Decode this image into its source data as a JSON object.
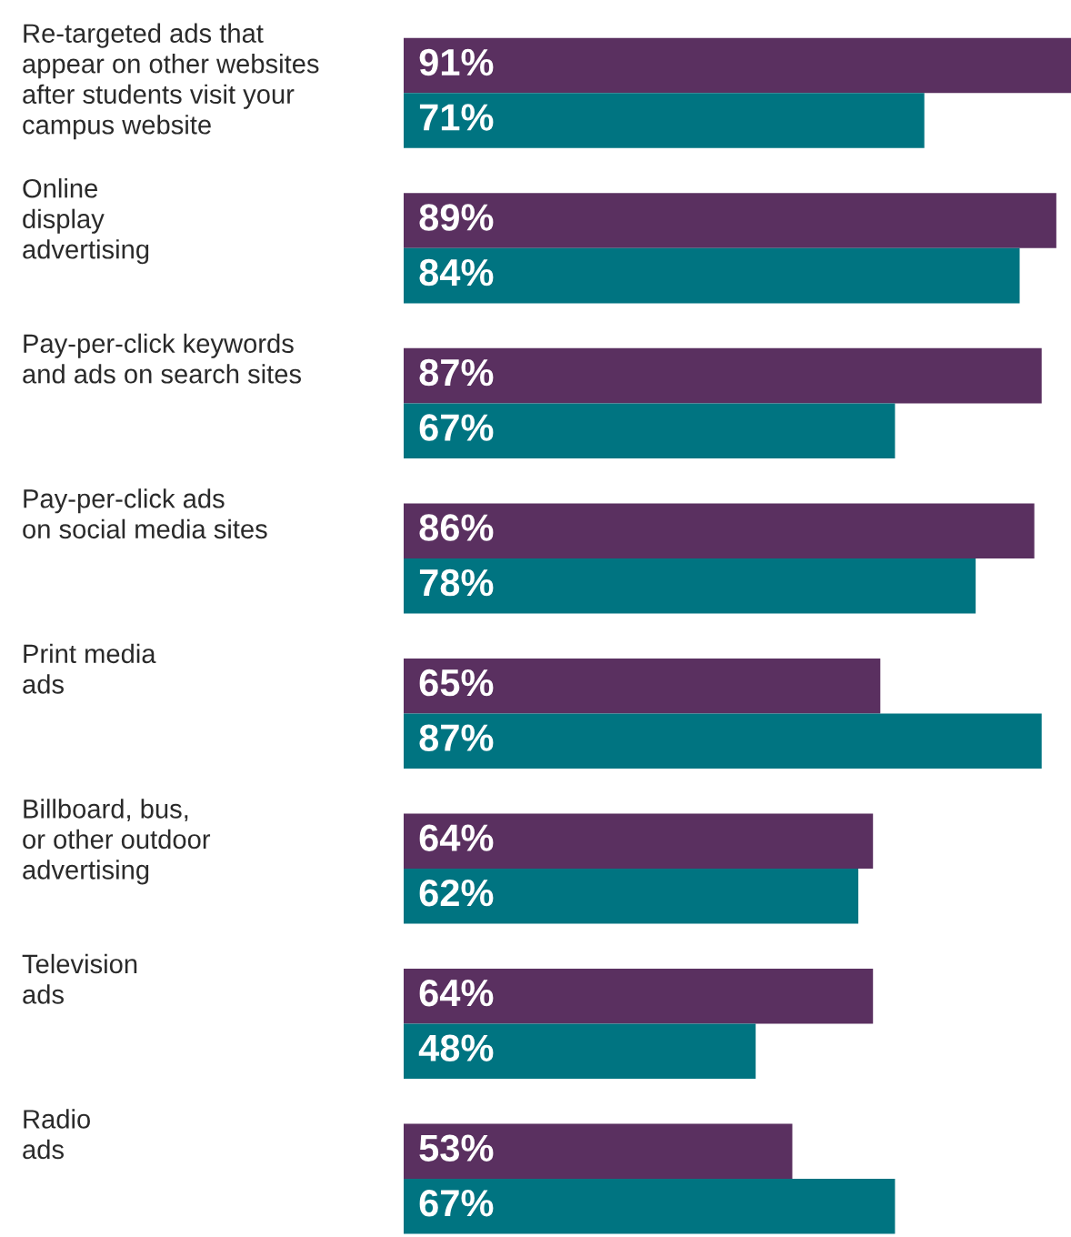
{
  "chart_data": {
    "type": "bar",
    "orientation": "horizontal",
    "legend": false,
    "categories": [
      "Re-targeted ads that\nappear on other websites\nafter students visit your\ncampus website",
      "Online\ndisplay\nadvertising",
      "Pay-per-click keywords\nand ads on search sites",
      "Pay-per-click ads\non social media sites",
      "Print media\nads",
      "Billboard, bus,\nor other outdoor\nadvertising",
      "Television\nads",
      "Radio\nads"
    ],
    "series": [
      {
        "color": "#5a3060",
        "values": [
          91,
          89,
          87,
          86,
          65,
          64,
          64,
          53
        ],
        "value_labels": [
          "91%",
          "89%",
          "87%",
          "86%",
          "65%",
          "64%",
          "64%",
          "53%"
        ]
      },
      {
        "color": "#007481",
        "values": [
          71,
          84,
          67,
          78,
          87,
          62,
          48,
          67
        ],
        "value_labels": [
          "71%",
          "84%",
          "67%",
          "78%",
          "87%",
          "62%",
          "48%",
          "67%"
        ]
      }
    ]
  }
}
